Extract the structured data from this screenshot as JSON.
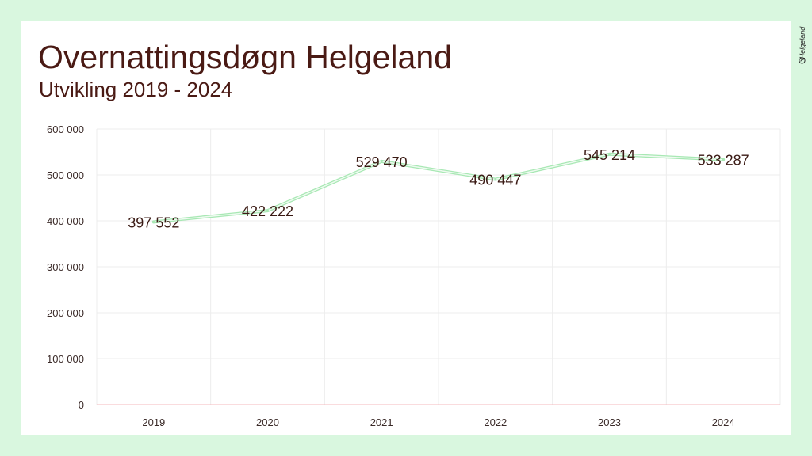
{
  "slide": {
    "title": "Overnattingsdøgn Helgeland",
    "subtitle": "Utvikling 2019 - 2024"
  },
  "logo": {
    "text": "Helgeland",
    "icon": "leaf-circle-icon"
  },
  "colors": {
    "background": "#d9f7df",
    "title": "#4a1a14",
    "line": "#a8e8b4",
    "grid": "#ececec",
    "axis": "#f4b8bc"
  },
  "chart_data": {
    "type": "line",
    "title": "Overnattingsdøgn Helgeland",
    "subtitle": "Utvikling 2019 - 2024",
    "categories": [
      "2019",
      "2020",
      "2021",
      "2022",
      "2023",
      "2024"
    ],
    "series": [
      {
        "values": [
          397552,
          422222,
          529470,
          490447,
          545214,
          533287
        ]
      }
    ],
    "data_labels": [
      "397 552",
      "422 222",
      "529 470",
      "490 447",
      "545 214",
      "533 287"
    ],
    "ylim": [
      0,
      600000
    ],
    "yticks": [
      0,
      100000,
      200000,
      300000,
      400000,
      500000,
      600000
    ],
    "ytick_labels": [
      "0",
      "100 000",
      "200 000",
      "300 000",
      "400 000",
      "500 000",
      "600 000"
    ],
    "xlabel": "",
    "ylabel": "",
    "grid": true,
    "legend": "none"
  }
}
